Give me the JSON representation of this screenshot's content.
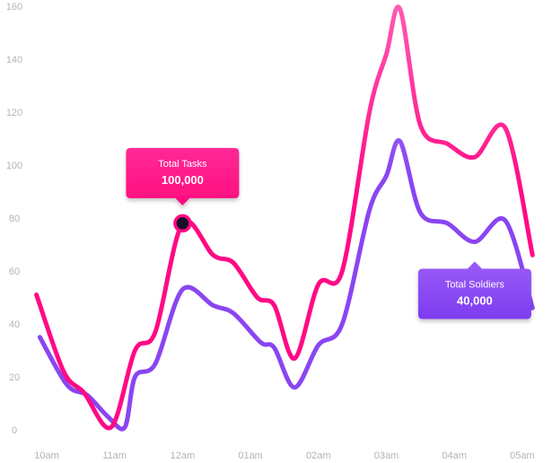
{
  "chart_data": {
    "type": "line",
    "title": "",
    "xlabel": "",
    "ylabel": "",
    "ylim": [
      0,
      160
    ],
    "yticks": [
      0,
      20,
      40,
      60,
      80,
      100,
      120,
      140,
      160
    ],
    "categories": [
      "10am",
      "11am",
      "12am",
      "01am",
      "02am",
      "03am",
      "04am",
      "05am"
    ],
    "grid": false,
    "series": [
      {
        "name": "Total Tasks",
        "color_start": "#ff0a86",
        "color_end": "#ff5cb4",
        "x": [
          -0.15,
          0.25,
          0.55,
          0.95,
          1.3,
          1.6,
          2.0,
          2.45,
          2.75,
          3.1,
          3.35,
          3.65,
          4.0,
          4.35,
          4.75,
          5.0,
          5.2,
          5.5,
          5.9,
          6.3,
          6.75,
          7.15
        ],
        "values": [
          51,
          22,
          14,
          1,
          30,
          37,
          78,
          66,
          63,
          50,
          47,
          27,
          55,
          60,
          120,
          142,
          159,
          115,
          108,
          103,
          114,
          66
        ]
      },
      {
        "name": "Total Soldiers",
        "color_start": "#8a45f2",
        "color_end": "#b88aff",
        "x": [
          -0.1,
          0.3,
          0.6,
          0.9,
          1.15,
          1.3,
          1.6,
          2.0,
          2.45,
          2.75,
          3.15,
          3.35,
          3.65,
          4.0,
          4.35,
          4.75,
          5.0,
          5.2,
          5.5,
          5.9,
          6.3,
          6.75,
          7.15
        ],
        "values": [
          35,
          17,
          13,
          5,
          1,
          20,
          25,
          53,
          47,
          44,
          33,
          31,
          16,
          32,
          40,
          83,
          96,
          109,
          82,
          78,
          71,
          79,
          46
        ]
      }
    ],
    "annotations": [
      {
        "series": "Total Tasks",
        "label": "Total Tasks",
        "value": "100,000",
        "x": 2.0,
        "y": 78,
        "marker": true,
        "color_start": "#ff2a97",
        "color_end": "#ff0c7d"
      },
      {
        "series": "Total Soldiers",
        "label": "Total Soldiers",
        "value": "40,000",
        "x": 6.3,
        "y": 71,
        "marker": false,
        "color_start": "#9a5cf6",
        "color_end": "#7d3cf0"
      }
    ]
  }
}
